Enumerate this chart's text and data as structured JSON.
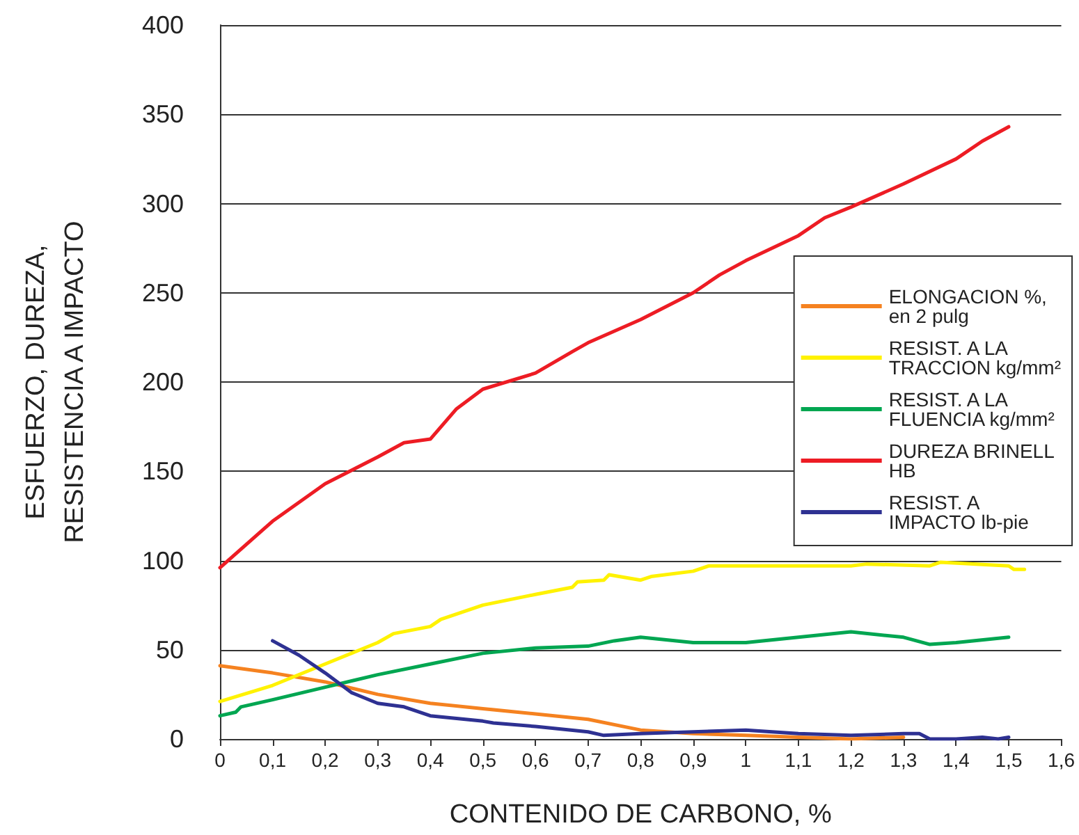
{
  "chart_data": {
    "type": "line",
    "xlabel": "CONTENIDO DE CARBONO, %",
    "ylabel": "ESFUERZO, DUREZA,\nRESISTENCIA A IMPACTO",
    "xlim": [
      0,
      1.6
    ],
    "xticks": [
      0,
      {
        "value": 0.1,
        "label": "0,1"
      },
      {
        "value": 0.2,
        "label": "0,2"
      },
      {
        "value": 0.3,
        "label": "0,3"
      },
      {
        "value": 0.4,
        "label": "0,4"
      },
      {
        "value": 0.5,
        "label": "0,5"
      },
      {
        "value": 0.6,
        "label": "0,6"
      },
      {
        "value": 0.7,
        "label": "0,7"
      },
      {
        "value": 0.8,
        "label": "0,8"
      },
      {
        "value": 0.9,
        "label": "0,9"
      },
      1,
      {
        "value": 1.1,
        "label": "1,1"
      },
      {
        "value": 1.2,
        "label": "1,2"
      },
      {
        "value": 1.3,
        "label": "1,3"
      },
      {
        "value": 1.4,
        "label": "1,4"
      },
      {
        "value": 1.5,
        "label": "1,5"
      },
      {
        "value": 1.6,
        "label": "1,6"
      }
    ],
    "ylim": [
      0,
      400
    ],
    "yticks": [
      0,
      50,
      100,
      150,
      200,
      250,
      300,
      350,
      400
    ],
    "grid": "y",
    "legend": "right",
    "marker": "none",
    "line_style": "solid",
    "series": [
      {
        "name": "ELONGACION %,\nen 2 pulg",
        "color": "#f58220",
        "x": [
          0,
          0.1,
          0.2,
          0.3,
          0.4,
          0.5,
          0.6,
          0.7,
          0.8,
          0.9,
          1.0,
          1.1,
          1.2,
          1.3
        ],
        "values": [
          41,
          37,
          32,
          25,
          20,
          17,
          14,
          11,
          5,
          3,
          2,
          1,
          0,
          1
        ]
      },
      {
        "name": "RESIST. A LA\nTRACCION kg/mm²",
        "color": "#fff200",
        "x": [
          0,
          0.1,
          0.2,
          0.3,
          0.33,
          0.4,
          0.42,
          0.5,
          0.6,
          0.67,
          0.68,
          0.73,
          0.74,
          0.8,
          0.82,
          0.9,
          0.93,
          1.2,
          1.23,
          1.35,
          1.37,
          1.5,
          1.51,
          1.53
        ],
        "values": [
          21,
          30,
          42,
          54,
          59,
          63,
          67,
          75,
          81,
          85,
          88,
          89,
          92,
          89,
          91,
          94,
          97,
          97,
          98,
          97,
          99,
          97,
          95,
          95
        ]
      },
      {
        "name": "RESIST. A LA\nFLUENCIA kg/mm²",
        "color": "#00a651",
        "x": [
          0,
          0.03,
          0.04,
          0.1,
          0.2,
          0.3,
          0.4,
          0.5,
          0.6,
          0.7,
          0.75,
          0.8,
          0.9,
          1.0,
          1.1,
          1.2,
          1.3,
          1.35,
          1.4,
          1.5
        ],
        "values": [
          13,
          15,
          18,
          22,
          29,
          36,
          42,
          48,
          51,
          52,
          55,
          57,
          54,
          54,
          57,
          60,
          57,
          53,
          54,
          57
        ]
      },
      {
        "name": "DUREZA BRINELL\nHB",
        "color": "#ed1c24",
        "x": [
          0,
          0.1,
          0.2,
          0.3,
          0.35,
          0.4,
          0.45,
          0.5,
          0.6,
          0.67,
          0.7,
          0.8,
          0.9,
          0.95,
          1.0,
          1.1,
          1.15,
          1.2,
          1.3,
          1.4,
          1.45,
          1.5
        ],
        "values": [
          96,
          122,
          143,
          158,
          166,
          168,
          185,
          196,
          205,
          217,
          222,
          235,
          250,
          260,
          268,
          282,
          292,
          298,
          311,
          325,
          335,
          343
        ]
      },
      {
        "name": "RESIST. A\nIMPACTO lb-pie",
        "color": "#2e3192",
        "x": [
          0.1,
          0.15,
          0.2,
          0.25,
          0.3,
          0.35,
          0.4,
          0.5,
          0.52,
          0.6,
          0.7,
          0.73,
          0.8,
          0.9,
          1.0,
          1.1,
          1.2,
          1.3,
          1.33,
          1.35,
          1.4,
          1.45,
          1.48,
          1.5
        ],
        "values": [
          55,
          47,
          37,
          26,
          20,
          18,
          13,
          10,
          9,
          7,
          4,
          2,
          3,
          4,
          5,
          3,
          2,
          3,
          3,
          0,
          0,
          1,
          0,
          1
        ]
      }
    ]
  }
}
